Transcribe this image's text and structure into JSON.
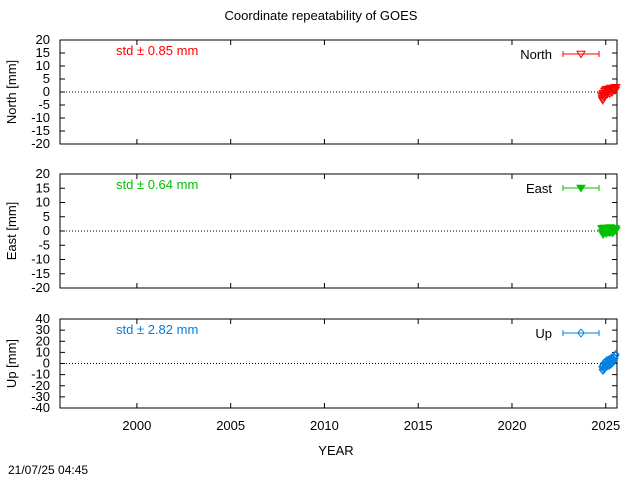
{
  "chart_data": {
    "type": "scatter",
    "title": "Coordinate repeatability of GOES",
    "xlabel": "YEAR",
    "xlim": [
      1995.9,
      2025.6
    ],
    "xticks": [
      2000,
      2005,
      2010,
      2015,
      2020,
      2025
    ],
    "timestamp": "21/07/25 04:45",
    "grid": false,
    "panels": [
      {
        "id": "north",
        "ylabel": "North [mm]",
        "ylim": [
          -20,
          20
        ],
        "yticks": [
          20,
          15,
          10,
          5,
          0,
          -5,
          -10,
          -15,
          -20
        ],
        "std_label": "std ± 0.85 mm",
        "legend": "North",
        "legend_position": "top-right",
        "color": "#ff0000",
        "marker": "triangle-down-open",
        "zero_line": true,
        "series": [
          {
            "x": [
              2024.8,
              2024.82,
              2024.84,
              2024.86,
              2024.88,
              2024.9,
              2024.92,
              2024.95,
              2024.98,
              2025.0,
              2025.03,
              2025.06,
              2025.09,
              2025.12,
              2025.15,
              2025.18,
              2025.21,
              2025.24,
              2025.27,
              2025.3,
              2025.33,
              2025.36,
              2025.39,
              2025.42,
              2025.45,
              2025.48,
              2025.51,
              2025.54
            ],
            "y": [
              -1.5,
              -2.5,
              -3.2,
              -1.0,
              -0.5,
              -1.8,
              -2.0,
              0.3,
              -1.2,
              0.8,
              -0.4,
              1.0,
              -0.8,
              0.5,
              1.2,
              0.2,
              -0.6,
              0.9,
              1.5,
              0.4,
              -0.2,
              1.1,
              0.6,
              1.6,
              0.8,
              1.3,
              0.7,
              1.8
            ]
          }
        ]
      },
      {
        "id": "east",
        "ylabel": "East [mm]",
        "ylim": [
          -20,
          20
        ],
        "yticks": [
          20,
          15,
          10,
          5,
          0,
          -5,
          -10,
          -15,
          -20
        ],
        "std_label": "std ± 0.64 mm",
        "legend": "East",
        "legend_position": "top-right",
        "color": "#00c000",
        "marker": "triangle-down-filled",
        "zero_line": true,
        "series": [
          {
            "x": [
              2024.8,
              2024.82,
              2024.84,
              2024.86,
              2024.88,
              2024.9,
              2024.92,
              2024.95,
              2024.98,
              2025.0,
              2025.03,
              2025.06,
              2025.09,
              2025.12,
              2025.15,
              2025.18,
              2025.21,
              2025.24,
              2025.27,
              2025.3,
              2025.33,
              2025.36,
              2025.39,
              2025.42,
              2025.45,
              2025.48,
              2025.51,
              2025.54
            ],
            "y": [
              0.8,
              -0.5,
              1.0,
              -1.2,
              0.3,
              -0.8,
              0.6,
              -0.2,
              1.1,
              0.4,
              -0.9,
              0.7,
              -0.3,
              0.9,
              0.1,
              -0.6,
              0.5,
              1.2,
              -0.4,
              0.8,
              0.2,
              -0.7,
              0.6,
              1.0,
              -0.1,
              0.5,
              0.9,
              0.3
            ]
          }
        ]
      },
      {
        "id": "up",
        "ylabel": "Up [mm]",
        "ylim": [
          -40,
          40
        ],
        "yticks": [
          40,
          30,
          20,
          10,
          0,
          -10,
          -20,
          -30,
          -40
        ],
        "std_label": "std ± 2.82 mm",
        "legend": "Up",
        "legend_position": "top-right",
        "color": "#0080e0",
        "marker": "diamond-open",
        "zero_line": true,
        "series": [
          {
            "x": [
              2024.8,
              2024.82,
              2024.84,
              2024.86,
              2024.88,
              2024.9,
              2024.92,
              2024.95,
              2024.98,
              2025.0,
              2025.03,
              2025.06,
              2025.09,
              2025.12,
              2025.15,
              2025.18,
              2025.21,
              2025.24,
              2025.27,
              2025.3,
              2025.33,
              2025.36,
              2025.39,
              2025.42,
              2025.45,
              2025.48,
              2025.51,
              2025.54
            ],
            "y": [
              -3.0,
              -5.5,
              -2.0,
              -6.0,
              -1.5,
              -4.0,
              0.5,
              -3.5,
              -2.5,
              1.0,
              -1.0,
              2.5,
              -2.0,
              0.0,
              3.0,
              -1.5,
              1.5,
              4.0,
              -0.5,
              2.0,
              5.0,
              1.0,
              3.5,
              6.0,
              2.5,
              4.5,
              7.0,
              8.0
            ]
          }
        ]
      }
    ]
  }
}
